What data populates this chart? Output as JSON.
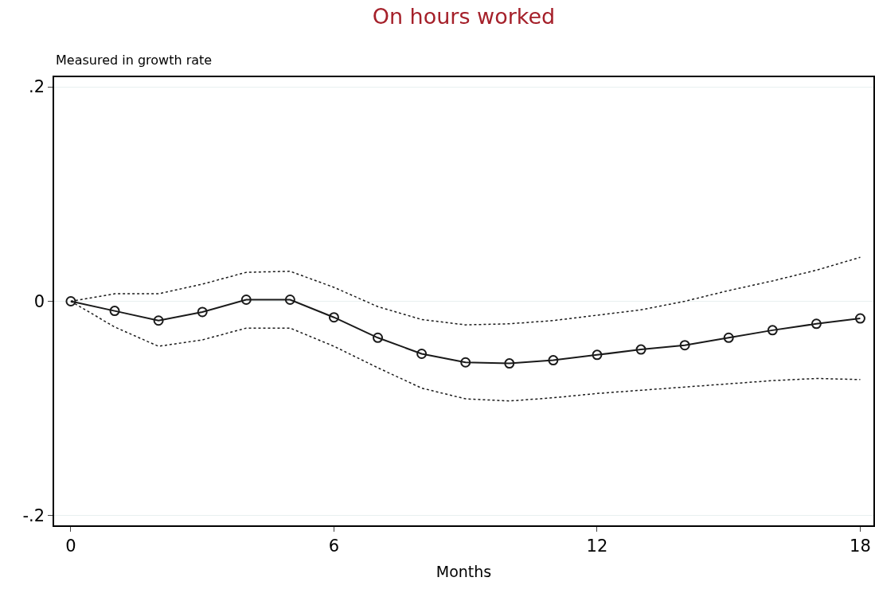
{
  "chart_data": {
    "type": "line",
    "title": "On hours worked",
    "ylabel": "Measured in growth rate",
    "xlabel": "Months",
    "x": [
      0,
      1,
      2,
      3,
      4,
      5,
      6,
      7,
      8,
      9,
      10,
      11,
      12,
      13,
      14,
      15,
      16,
      17,
      18
    ],
    "series": [
      {
        "color": "#1a1a1a",
        "values": [
          0,
          -0.009,
          -0.018,
          -0.01,
          0.0015,
          0.0015,
          -0.015,
          -0.034,
          -0.049,
          -0.057,
          -0.058,
          -0.055,
          -0.05,
          -0.045,
          -0.041,
          -0.034,
          -0.027,
          -0.021,
          -0.016
        ]
      },
      {
        "color": "#1a1a1a",
        "line_style": "dotted",
        "marker": "none",
        "values": [
          0,
          0.007,
          0.007,
          0.016,
          0.027,
          0.028,
          0.013,
          -0.005,
          -0.017,
          -0.022,
          -0.021,
          -0.018,
          -0.013,
          -0.008,
          0,
          0.01,
          0.019,
          0.029,
          0.041
        ]
      },
      {
        "color": "#1a1a1a",
        "line_style": "dotted",
        "marker": "none",
        "values": [
          0,
          -0.024,
          -0.042,
          -0.036,
          -0.025,
          -0.025,
          -0.042,
          -0.062,
          -0.081,
          -0.091,
          -0.093,
          -0.09,
          -0.086,
          -0.083,
          -0.08,
          -0.077,
          -0.074,
          -0.072,
          -0.073
        ]
      }
    ],
    "xlim": [
      -0.38,
      18.3
    ],
    "xticks": [
      0,
      6,
      12,
      18
    ],
    "ylim": [
      -0.209,
      0.209
    ],
    "yticks": [
      {
        "value": -0.2,
        "label": "-.2"
      },
      0,
      {
        "value": 0.2,
        "label": ".2"
      }
    ],
    "grid": "y",
    "marker": "circle",
    "line_style": "solid"
  }
}
